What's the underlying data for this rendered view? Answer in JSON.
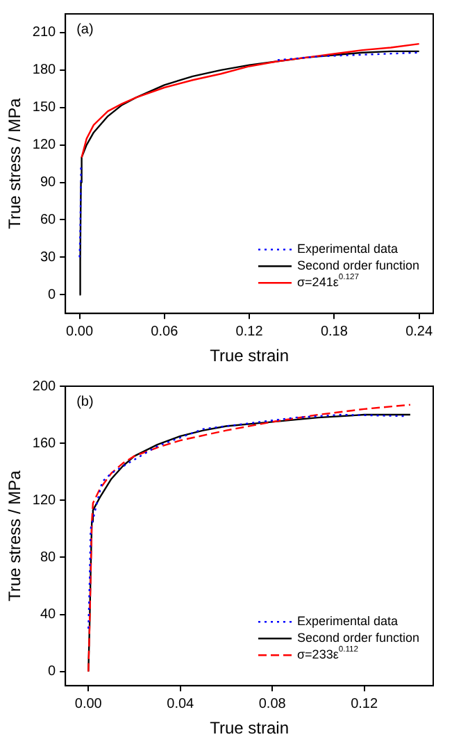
{
  "chart_data": [
    {
      "type": "line",
      "xlabel": "True strain",
      "ylabel": "True stress / MPa",
      "annotations": [
        "(a)"
      ],
      "xlim": [
        -0.01,
        0.25
      ],
      "ylim": [
        -15,
        225
      ],
      "xticks": [
        {
          "value": 0,
          "label": "0.00"
        },
        0.06,
        0.12,
        0.18,
        0.24
      ],
      "yticks": [
        0,
        30,
        60,
        90,
        120,
        150,
        180,
        210
      ],
      "grid": false,
      "legend": "bottom right",
      "marker": "none",
      "series": [
        {
          "name": "Experimental data",
          "color": "#0000ff",
          "line_style": "dotted",
          "x": [
            0,
            0.0005,
            0.001,
            0.001,
            0.07,
            0.14,
            0.15,
            0.17,
            0.24
          ],
          "values": [
            30,
            50,
            95,
            103,
            null,
            188,
            189,
            191,
            194
          ]
        },
        {
          "name": "Second order function",
          "color": "#000000",
          "line_style": "solid",
          "x": [
            0,
            0.0005,
            0.001,
            0.0015,
            0.005,
            0.01,
            0.02,
            0.03,
            0.04,
            0.06,
            0.08,
            0.1,
            0.12,
            0.14,
            0.16,
            0.18,
            0.2,
            0.22,
            0.24
          ],
          "values": [
            0,
            27,
            90,
            110,
            120,
            130,
            143,
            152,
            158,
            168,
            175,
            180,
            184,
            187,
            190,
            192,
            194,
            195,
            195
          ]
        },
        {
          "name": "σ=241ε$^{0.127}$",
          "color": "#ff0000",
          "line_style": "solid",
          "x": [
            0.0015,
            0.005,
            0.01,
            0.02,
            0.03,
            0.04,
            0.06,
            0.08,
            0.1,
            0.12,
            0.14,
            0.16,
            0.18,
            0.2,
            0.22,
            0.24
          ],
          "values": [
            110,
            125,
            136,
            147,
            153,
            158,
            166,
            172,
            177,
            183,
            187,
            190,
            193,
            196,
            198,
            201
          ]
        }
      ]
    },
    {
      "type": "line",
      "xlabel": "True strain",
      "ylabel": "True stress / MPa",
      "annotations": [
        "(b)"
      ],
      "xlim": [
        -0.01,
        0.15
      ],
      "ylim": [
        -10,
        200
      ],
      "xticks": [
        {
          "value": 0,
          "label": "0.00"
        },
        0.04,
        0.08,
        0.12
      ],
      "yticks": [
        0,
        40,
        80,
        120,
        160,
        200
      ],
      "grid": false,
      "legend": "bottom right",
      "marker": "none",
      "series": [
        {
          "name": "Experimental data",
          "color": "#0000ff",
          "line_style": "dotted",
          "x": [
            0,
            0.0005,
            0.001,
            0.006,
            0.01,
            0.03,
            0.05,
            0.07,
            0.09,
            0.11,
            0.138
          ],
          "values": [
            30,
            60,
            100,
            133,
            139,
            158,
            170,
            174,
            178,
            180,
            179
          ]
        },
        {
          "name": "Second order function",
          "color": "#000000",
          "line_style": "solid",
          "x": [
            0,
            0.0005,
            0.001,
            0.0015,
            0.002,
            0.005,
            0.01,
            0.015,
            0.02,
            0.03,
            0.04,
            0.05,
            0.06,
            0.08,
            0.1,
            0.12,
            0.14
          ],
          "values": [
            0,
            30,
            70,
            105,
            113,
            122,
            135,
            144,
            151,
            159,
            165,
            169,
            172,
            175,
            178,
            180,
            180
          ]
        },
        {
          "name": "σ=233ε$^{0.112}$",
          "color": "#ff0000",
          "line_style": "dashed",
          "x": [
            0,
            0.0005,
            0.001,
            0.0015,
            0.002,
            0.005,
            0.01,
            0.015,
            0.02,
            0.03,
            0.04,
            0.06,
            0.08,
            0.1,
            0.12,
            0.14
          ],
          "values": [
            0,
            30,
            65,
            105,
            118,
            128,
            139,
            146,
            151,
            157,
            162,
            169,
            175,
            180,
            184,
            187
          ]
        }
      ]
    }
  ]
}
